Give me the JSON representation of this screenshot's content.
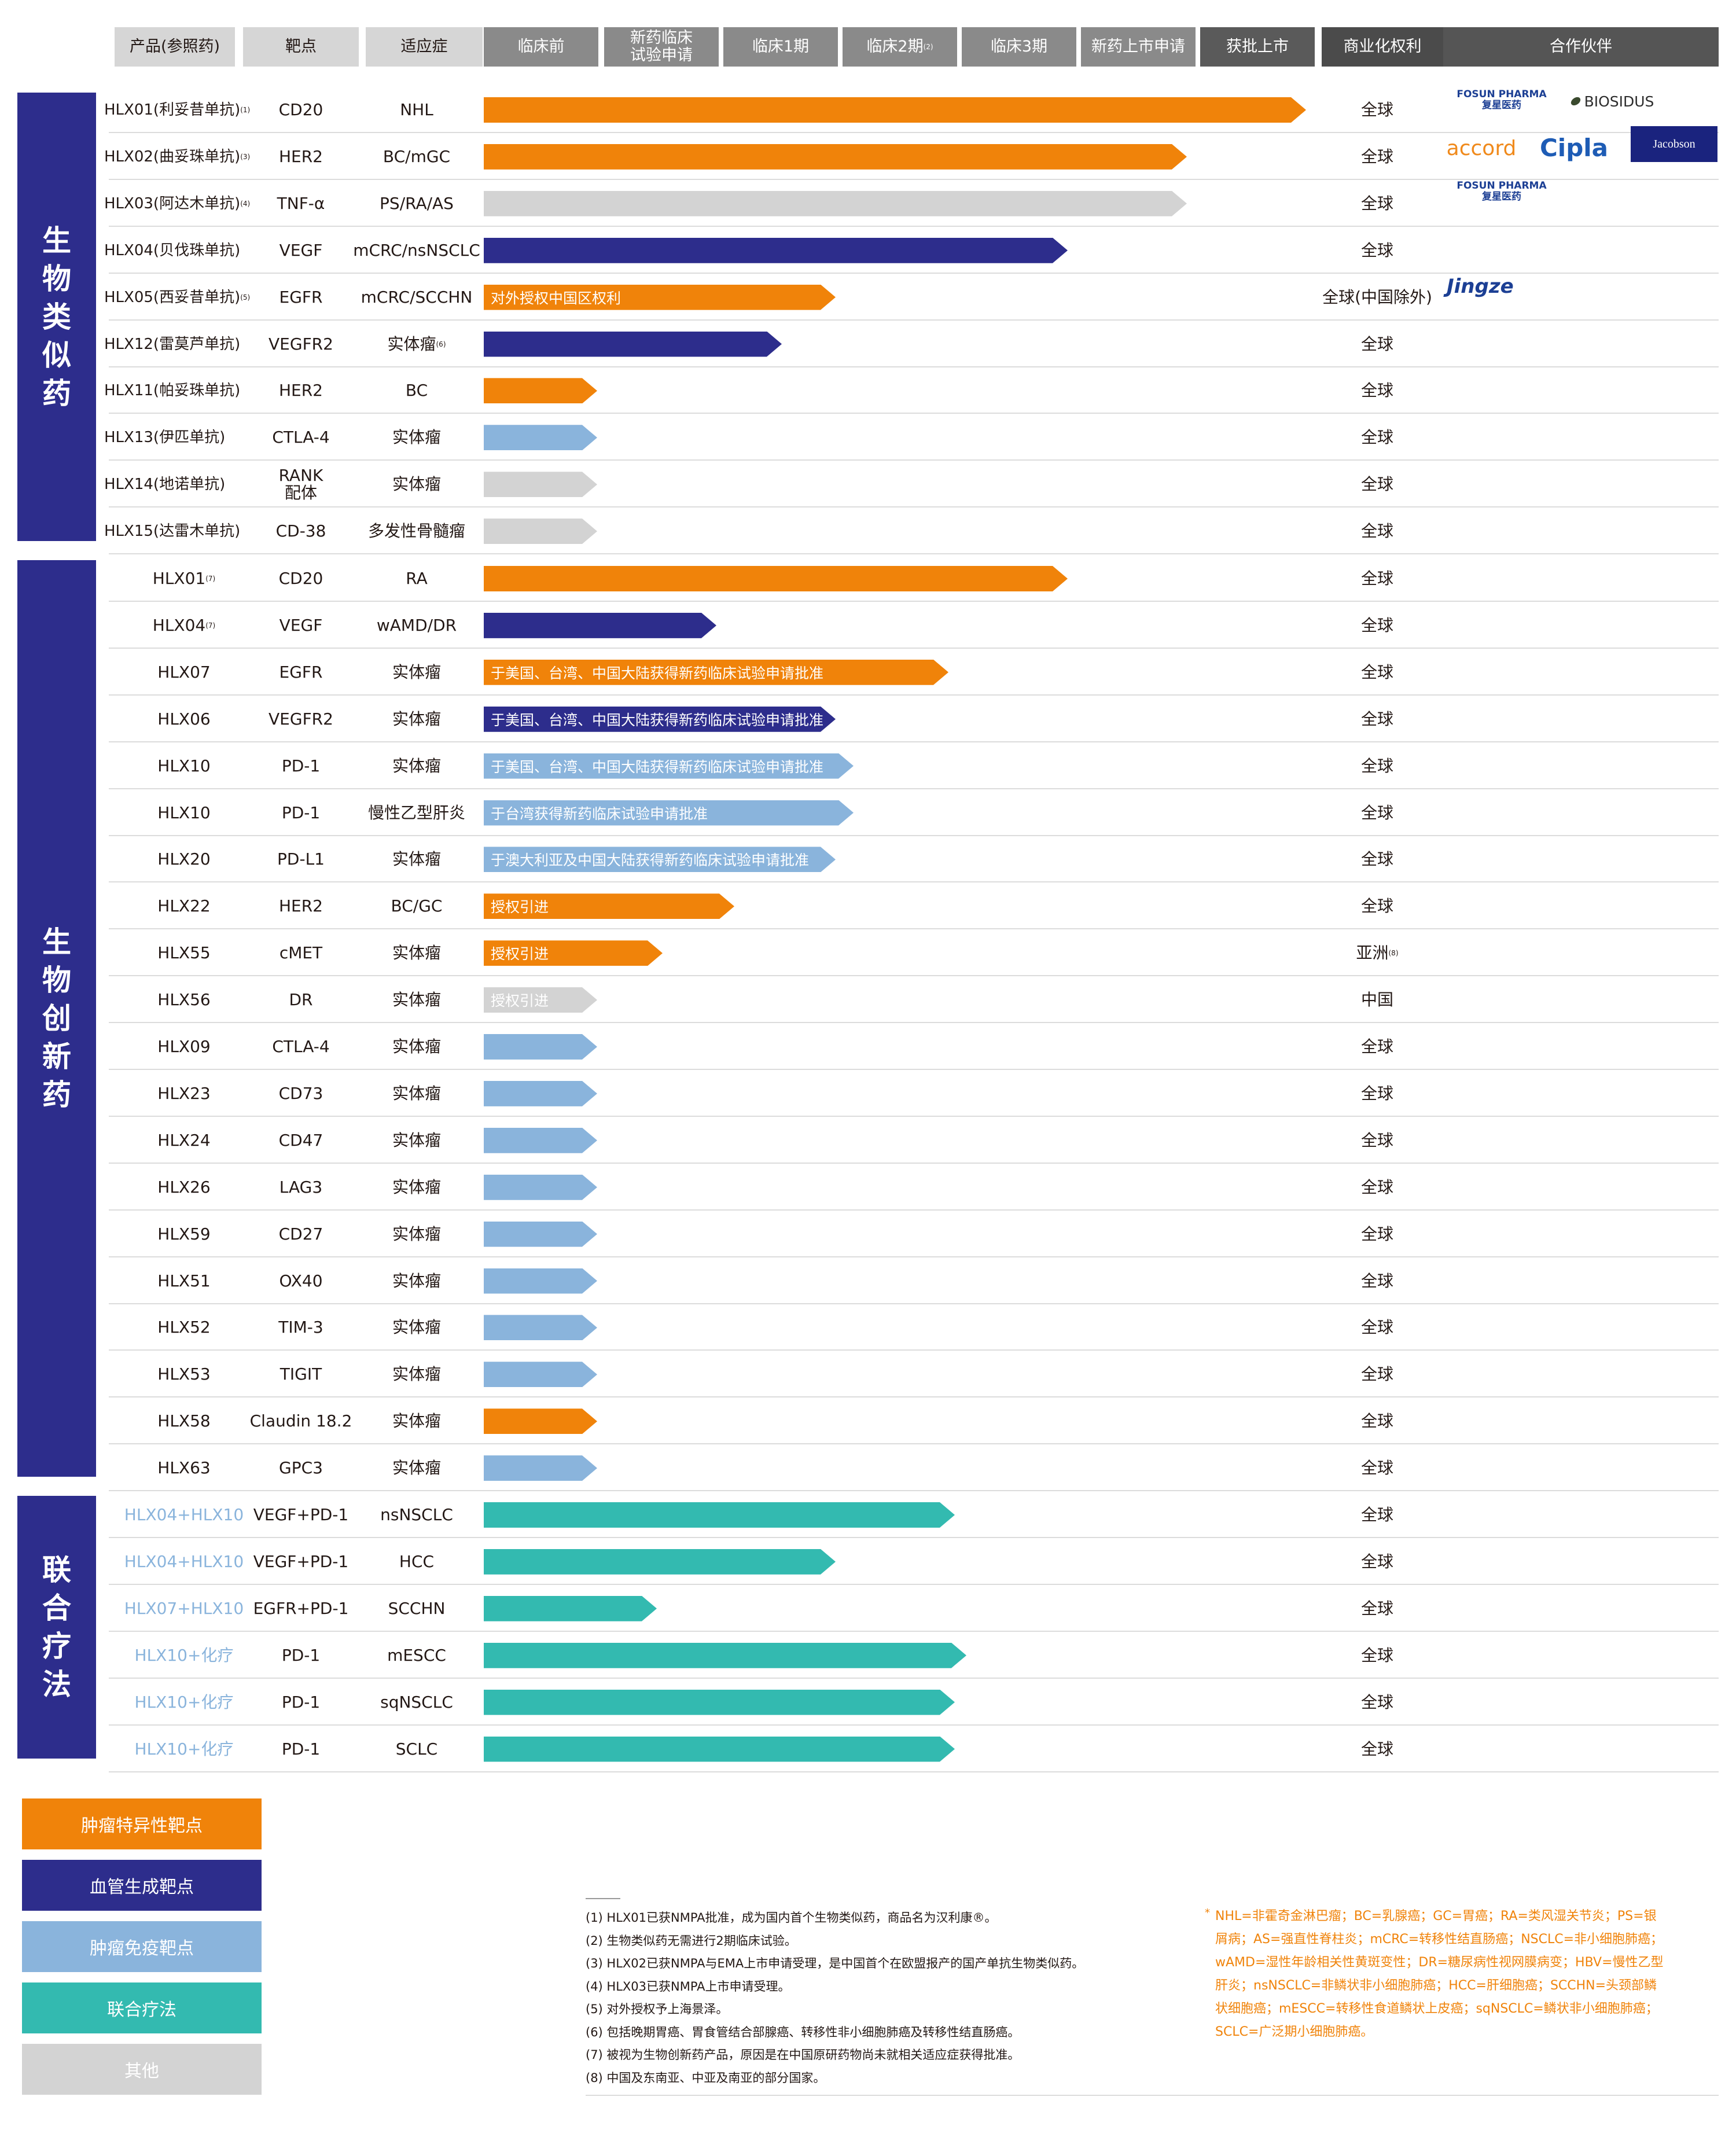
{
  "colors": {
    "tumor_specific": "#f0830a",
    "angiogenesis": "#2d2d8c",
    "immune": "#8ab4dc",
    "combo": "#33bab0",
    "other": "#d3d3d3",
    "section": "#2d2d8c"
  },
  "headers": {
    "product": "产品(参照药)",
    "target": "靶点",
    "indication": "适应症",
    "phases": [
      "临床前",
      "新药临床\n试验申请",
      "临床1期",
      "临床2期",
      "临床3期",
      "新药上市申请",
      "获批上市"
    ],
    "phase2_sup": "(2)",
    "rights": "商业化权利",
    "partners": "合作伙伴"
  },
  "sections": [
    {
      "label": "生物类似药",
      "chars": [
        "生",
        "物",
        "类",
        "似",
        "药"
      ]
    },
    {
      "label": "生物创新药",
      "chars": [
        "生",
        "物",
        "创",
        "新",
        "药"
      ]
    },
    {
      "label": "联合疗法",
      "chars": [
        "联",
        "合",
        "疗",
        "法"
      ]
    }
  ],
  "chart_data": {
    "type": "bar",
    "title": "",
    "stages": [
      "临床前",
      "新药临床试验申请",
      "临床1期",
      "临床2期",
      "临床3期",
      "新药上市申请",
      "获批上市"
    ],
    "rows": [
      {
        "section": 0,
        "product": "HLX01(利妥昔单抗)",
        "sup": "(1)",
        "target": "CD20",
        "indication": "NHL",
        "progress": 6.9,
        "category": "tumor_specific",
        "note": "",
        "rights": "全球",
        "rights_sup": "",
        "partners": [
          "FOSUN PHARMA 复星医药",
          "BIOSIDUS"
        ]
      },
      {
        "section": 0,
        "product": "HLX02(曲妥珠单抗)",
        "sup": "(3)",
        "target": "HER2",
        "indication": "BC/mGC",
        "progress": 5.9,
        "category": "tumor_specific",
        "note": "",
        "rights": "全球",
        "rights_sup": "",
        "partners": [
          "accord",
          "Cipla",
          "Jacobson"
        ]
      },
      {
        "section": 0,
        "product": "HLX03(阿达木单抗)",
        "sup": "(4)",
        "target": "TNF-α",
        "indication": "PS/RA/AS",
        "progress": 5.9,
        "category": "other",
        "note": "",
        "rights": "全球",
        "rights_sup": "",
        "partners": [
          "FOSUN PHARMA 复星医药"
        ]
      },
      {
        "section": 0,
        "product": "HLX04(贝伐珠单抗)",
        "sup": "",
        "target": "VEGF",
        "indication": "mCRC/nsNSCLC",
        "progress": 4.9,
        "category": "angiogenesis",
        "note": "",
        "rights": "全球",
        "rights_sup": "",
        "partners": []
      },
      {
        "section": 0,
        "product": "HLX05(西妥昔单抗)",
        "sup": "(5)",
        "target": "EGFR",
        "indication": "mCRC/SCCHN",
        "progress": 2.95,
        "category": "tumor_specific",
        "note": "对外授权中国区权利",
        "rights": "全球(中国除外)",
        "rights_sup": "",
        "partners": [
          "Jingze"
        ]
      },
      {
        "section": 0,
        "product": "HLX12(雷莫芦单抗)",
        "sup": "",
        "target": "VEGFR2",
        "indication": "实体瘤",
        "indication_sup": "(6)",
        "progress": 2.5,
        "category": "angiogenesis",
        "note": "",
        "rights": "全球",
        "rights_sup": "",
        "partners": []
      },
      {
        "section": 0,
        "product": "HLX11(帕妥珠单抗)",
        "sup": "",
        "target": "HER2",
        "indication": "BC",
        "progress": 0.95,
        "category": "tumor_specific",
        "note": "",
        "rights": "全球",
        "rights_sup": "",
        "partners": []
      },
      {
        "section": 0,
        "product": "HLX13(伊匹单抗)",
        "sup": "",
        "target": "CTLA-4",
        "indication": "实体瘤",
        "progress": 0.95,
        "category": "immune",
        "note": "",
        "rights": "全球",
        "rights_sup": "",
        "partners": []
      },
      {
        "section": 0,
        "product": "HLX14(地诺单抗)",
        "sup": "",
        "target": "RANK\n配体",
        "indication": "实体瘤",
        "progress": 0.95,
        "category": "other",
        "note": "",
        "rights": "全球",
        "rights_sup": "",
        "partners": []
      },
      {
        "section": 0,
        "product": "HLX15(达雷木单抗)",
        "sup": "",
        "target": "CD-38",
        "indication": "多发性骨髓瘤",
        "progress": 0.95,
        "category": "other",
        "note": "",
        "rights": "全球",
        "rights_sup": "",
        "partners": []
      },
      {
        "section": 1,
        "product": "HLX01",
        "sup": "(7)",
        "target": "CD20",
        "indication": "RA",
        "progress": 4.9,
        "category": "tumor_specific",
        "note": "",
        "rights": "全球",
        "rights_sup": "",
        "partners": []
      },
      {
        "section": 1,
        "product": "HLX04",
        "sup": "(7)",
        "target": "VEGF",
        "indication": "wAMD/DR",
        "progress": 1.95,
        "category": "angiogenesis",
        "note": "",
        "rights": "全球",
        "rights_sup": "",
        "partners": []
      },
      {
        "section": 1,
        "product": "HLX07",
        "sup": "",
        "target": "EGFR",
        "indication": "实体瘤",
        "progress": 3.9,
        "category": "tumor_specific",
        "note": "于美国、台湾、中国大陆获得新药临床试验申请批准",
        "rights": "全球",
        "rights_sup": "",
        "partners": []
      },
      {
        "section": 1,
        "product": "HLX06",
        "sup": "",
        "target": "VEGFR2",
        "indication": "实体瘤",
        "progress": 2.95,
        "category": "angiogenesis",
        "note": "于美国、台湾、中国大陆获得新药临床试验申请批准",
        "rights": "全球",
        "rights_sup": "",
        "partners": []
      },
      {
        "section": 1,
        "product": "HLX10",
        "sup": "",
        "target": "PD-1",
        "indication": "实体瘤",
        "progress": 3.1,
        "category": "immune",
        "note": "于美国、台湾、中国大陆获得新药临床试验申请批准",
        "rights": "全球",
        "rights_sup": "",
        "partners": []
      },
      {
        "section": 1,
        "product": "HLX10",
        "sup": "",
        "target": "PD-1",
        "indication": "慢性乙型肝炎",
        "progress": 3.1,
        "category": "immune",
        "note": "于台湾获得新药临床试验申请批准",
        "rights": "全球",
        "rights_sup": "",
        "partners": []
      },
      {
        "section": 1,
        "product": "HLX20",
        "sup": "",
        "target": "PD-L1",
        "indication": "实体瘤",
        "progress": 2.95,
        "category": "immune",
        "note": "于澳大利亚及中国大陆获得新药临床试验申请批准",
        "rights": "全球",
        "rights_sup": "",
        "partners": []
      },
      {
        "section": 1,
        "product": "HLX22",
        "sup": "",
        "target": "HER2",
        "indication": "BC/GC",
        "progress": 2.1,
        "category": "tumor_specific",
        "note": "授权引进",
        "rights": "全球",
        "rights_sup": "",
        "partners": []
      },
      {
        "section": 1,
        "product": "HLX55",
        "sup": "",
        "target": "cMET",
        "indication": "实体瘤",
        "progress": 1.5,
        "category": "tumor_specific",
        "note": "授权引进",
        "rights": "亚洲",
        "rights_sup": "(8)",
        "partners": []
      },
      {
        "section": 1,
        "product": "HLX56",
        "sup": "",
        "target": "DR",
        "indication": "实体瘤",
        "progress": 0.95,
        "category": "other",
        "note": "授权引进",
        "rights": "中国",
        "rights_sup": "",
        "partners": []
      },
      {
        "section": 1,
        "product": "HLX09",
        "sup": "",
        "target": "CTLA-4",
        "indication": "实体瘤",
        "progress": 0.95,
        "category": "immune",
        "note": "",
        "rights": "全球",
        "rights_sup": "",
        "partners": []
      },
      {
        "section": 1,
        "product": "HLX23",
        "sup": "",
        "target": "CD73",
        "indication": "实体瘤",
        "progress": 0.95,
        "category": "immune",
        "note": "",
        "rights": "全球",
        "rights_sup": "",
        "partners": []
      },
      {
        "section": 1,
        "product": "HLX24",
        "sup": "",
        "target": "CD47",
        "indication": "实体瘤",
        "progress": 0.95,
        "category": "immune",
        "note": "",
        "rights": "全球",
        "rights_sup": "",
        "partners": []
      },
      {
        "section": 1,
        "product": "HLX26",
        "sup": "",
        "target": "LAG3",
        "indication": "实体瘤",
        "progress": 0.95,
        "category": "immune",
        "note": "",
        "rights": "全球",
        "rights_sup": "",
        "partners": []
      },
      {
        "section": 1,
        "product": "HLX59",
        "sup": "",
        "target": "CD27",
        "indication": "实体瘤",
        "progress": 0.95,
        "category": "immune",
        "note": "",
        "rights": "全球",
        "rights_sup": "",
        "partners": []
      },
      {
        "section": 1,
        "product": "HLX51",
        "sup": "",
        "target": "OX40",
        "indication": "实体瘤",
        "progress": 0.95,
        "category": "immune",
        "note": "",
        "rights": "全球",
        "rights_sup": "",
        "partners": []
      },
      {
        "section": 1,
        "product": "HLX52",
        "sup": "",
        "target": "TIM-3",
        "indication": "实体瘤",
        "progress": 0.95,
        "category": "immune",
        "note": "",
        "rights": "全球",
        "rights_sup": "",
        "partners": []
      },
      {
        "section": 1,
        "product": "HLX53",
        "sup": "",
        "target": "TIGIT",
        "indication": "实体瘤",
        "progress": 0.95,
        "category": "immune",
        "note": "",
        "rights": "全球",
        "rights_sup": "",
        "partners": []
      },
      {
        "section": 1,
        "product": "HLX58",
        "sup": "",
        "target": "Claudin 18.2",
        "indication": "实体瘤",
        "progress": 0.95,
        "category": "tumor_specific",
        "note": "",
        "rights": "全球",
        "rights_sup": "",
        "partners": []
      },
      {
        "section": 1,
        "product": "HLX63",
        "sup": "",
        "target": "GPC3",
        "indication": "实体瘤",
        "progress": 0.95,
        "category": "immune",
        "note": "",
        "rights": "全球",
        "rights_sup": "",
        "partners": []
      },
      {
        "section": 2,
        "product": "HLX04+HLX10",
        "sup": "",
        "target": "VEGF+PD-1",
        "indication": "nsNSCLC",
        "progress": 3.95,
        "category": "combo",
        "note": "",
        "rights": "全球",
        "rights_sup": "",
        "partners": []
      },
      {
        "section": 2,
        "product": "HLX04+HLX10",
        "sup": "",
        "target": "VEGF+PD-1",
        "indication": "HCC",
        "progress": 2.95,
        "category": "combo",
        "note": "",
        "rights": "全球",
        "rights_sup": "",
        "partners": []
      },
      {
        "section": 2,
        "product": "HLX07+HLX10",
        "sup": "",
        "target": "EGFR+PD-1",
        "indication": "SCCHN",
        "progress": 1.45,
        "category": "combo",
        "note": "",
        "rights": "全球",
        "rights_sup": "",
        "partners": []
      },
      {
        "section": 2,
        "product": "HLX10+化疗",
        "sup": "",
        "target": "PD-1",
        "indication": "mESCC",
        "progress": 4.05,
        "category": "combo",
        "note": "",
        "rights": "全球",
        "rights_sup": "",
        "partners": []
      },
      {
        "section": 2,
        "product": "HLX10+化疗",
        "sup": "",
        "target": "PD-1",
        "indication": "sqNSCLC",
        "progress": 3.95,
        "category": "combo",
        "note": "",
        "rights": "全球",
        "rights_sup": "",
        "partners": []
      },
      {
        "section": 2,
        "product": "HLX10+化疗",
        "sup": "",
        "target": "PD-1",
        "indication": "SCLC",
        "progress": 3.95,
        "category": "combo",
        "note": "",
        "rights": "全球",
        "rights_sup": "",
        "partners": []
      }
    ]
  },
  "legend": [
    {
      "label": "肿瘤特异性靶点",
      "category": "tumor_specific"
    },
    {
      "label": "血管生成靶点",
      "category": "angiogenesis"
    },
    {
      "label": "肿瘤免疫靶点",
      "category": "immune"
    },
    {
      "label": "联合疗法",
      "category": "combo"
    },
    {
      "label": "其他",
      "category": "other"
    }
  ],
  "footnotes": [
    "(1) HLX01已获NMPA批准，成为国内首个生物类似药，商品名为汉利康®。",
    "(2) 生物类似药无需进行2期临床试验。",
    "(3) HLX02已获NMPA与EMA上市申请受理，是中国首个在欧盟报产的国产单抗生物类似药。",
    "(4) HLX03已获NMPA上市申请受理。",
    "(5) 对外授权予上海景泽。",
    "(6) 包括晚期胃癌、胃食管结合部腺癌、转移性非小细胞肺癌及转移性结直肠癌。",
    "(7) 被视为生物创新药产品，原因是在中国原研药物尚未就相关适应症获得批准。",
    "(8) 中国及东南亚、中亚及南亚的部分国家。"
  ],
  "abbreviations": "NHL=非霍奇金淋巴瘤；BC=乳腺癌；GC=胃癌；RA=类风湿关节炎；PS=银屑病；AS=强直性脊柱炎；mCRC=转移性结直肠癌；NSCLC=非小细胞肺癌；wAMD=湿性年龄相关性黄斑变性；DR=糖尿病性视网膜病变；HBV=慢性乙型肝炎；nsNSCLC=非鳞状非小细胞肺癌；HCC=肝细胞癌；SCCHN=头颈部鳞状细胞癌；mESCC=转移性食道鳞状上皮癌；sqNSCLC=鳞状非小细胞肺癌；SCLC=广泛期小细胞肺癌。",
  "abbr_marker": "*"
}
